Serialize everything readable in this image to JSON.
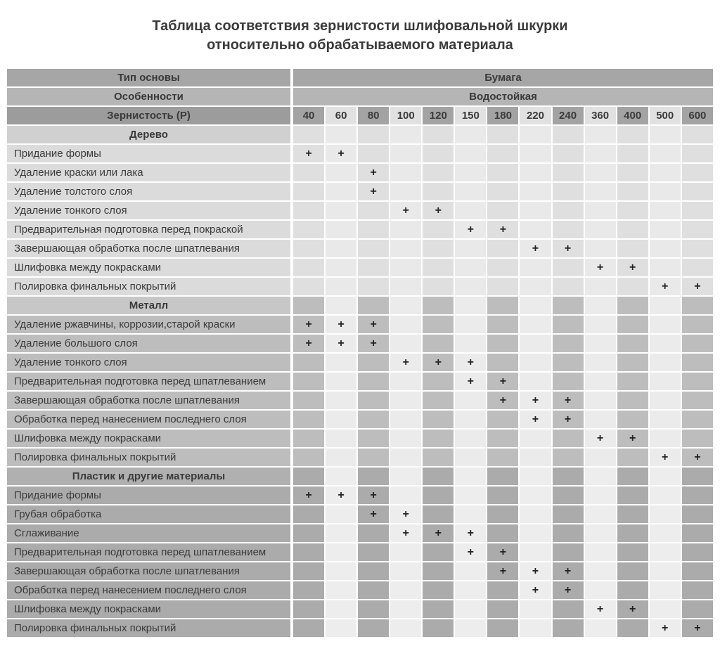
{
  "title": {
    "line1": "Таблица соответствия зернистости шлифовальной шкурки",
    "line2": "относительно обрабатываемого материала"
  },
  "header": {
    "base_type_label": "Тип основы",
    "base_type_value": "Бумага",
    "features_label": "Особенности",
    "features_value": "Водостойкая",
    "grit_label": "Зернистость (P)",
    "grits": [
      "40",
      "60",
      "80",
      "100",
      "120",
      "150",
      "180",
      "220",
      "240",
      "360",
      "400",
      "500",
      "600"
    ]
  },
  "mark_symbol": "+",
  "sections": [
    {
      "name": "Дерево",
      "rows": [
        {
          "label": "Придание формы",
          "marks": [
            "40",
            "60"
          ]
        },
        {
          "label": "Удаление краски или лака",
          "marks": [
            "80"
          ]
        },
        {
          "label": "Удаление толстого слоя",
          "marks": [
            "80"
          ]
        },
        {
          "label": "Удаление тонкого слоя",
          "marks": [
            "100",
            "120"
          ]
        },
        {
          "label": "Предварительная подготовка перед покраской",
          "marks": [
            "150",
            "180"
          ]
        },
        {
          "label": "Завершающая обработка после шпатлевания",
          "marks": [
            "220",
            "240"
          ]
        },
        {
          "label": "Шлифовка между покрасками",
          "marks": [
            "360",
            "400"
          ]
        },
        {
          "label": "Полировка финальных покрытий",
          "marks": [
            "500",
            "600"
          ]
        }
      ]
    },
    {
      "name": "Металл",
      "rows": [
        {
          "label": "Удаление ржавчины, коррозии,старой краски",
          "marks": [
            "40",
            "60",
            "80"
          ]
        },
        {
          "label": "Удаление большого слоя",
          "marks": [
            "40",
            "60",
            "80"
          ]
        },
        {
          "label": "Удаление тонкого слоя",
          "marks": [
            "100",
            "120",
            "150"
          ]
        },
        {
          "label": "Предварительная подготовка перед шпатлеванием",
          "marks": [
            "150",
            "180"
          ]
        },
        {
          "label": "Завершающая обработка после шпатлевания",
          "marks": [
            "180",
            "220",
            "240"
          ]
        },
        {
          "label": "Обработка перед нанесением последнего слоя",
          "marks": [
            "220",
            "240"
          ]
        },
        {
          "label": "Шлифовка между покрасками",
          "marks": [
            "360",
            "400"
          ]
        },
        {
          "label": "Полировка финальных покрытий",
          "marks": [
            "500",
            "600"
          ]
        }
      ]
    },
    {
      "name": "Пластик и другие материалы",
      "rows": [
        {
          "label": "Придание формы",
          "marks": [
            "40",
            "60",
            "80"
          ]
        },
        {
          "label": "Грубая обработка",
          "marks": [
            "80",
            "100"
          ]
        },
        {
          "label": "Сглаживание",
          "marks": [
            "100",
            "120",
            "150"
          ]
        },
        {
          "label": "Предварительная подготовка перед шпатлеванием",
          "marks": [
            "150",
            "180"
          ]
        },
        {
          "label": "Завершающая обработка после шпатлевания",
          "marks": [
            "180",
            "220",
            "240"
          ]
        },
        {
          "label": "Обработка перед нанесением последнего слоя",
          "marks": [
            "220",
            "240"
          ]
        },
        {
          "label": "Шлифовка между покрасками",
          "marks": [
            "360",
            "400"
          ]
        },
        {
          "label": "Полировка финальных покрытий",
          "marks": [
            "500",
            "600"
          ]
        }
      ]
    }
  ],
  "colors": {
    "page_background": "#ffffff",
    "title_text": "#3a3a3a",
    "header_row1_bg": "#a6a6a6",
    "header_row2_bg": "#b5b5b5",
    "grit_label_bg": "#9c9c9c",
    "grit_odd_col_bg": "#a3a3a3",
    "grit_even_col_bg": "#e1e1e1",
    "wood_row_bg": "#dbdbdb",
    "metal_row_bg": "#bdbdbd",
    "plastic_row_bg": "#ababab",
    "mark_text": "#222222",
    "cell_gap": "#ffffff"
  }
}
